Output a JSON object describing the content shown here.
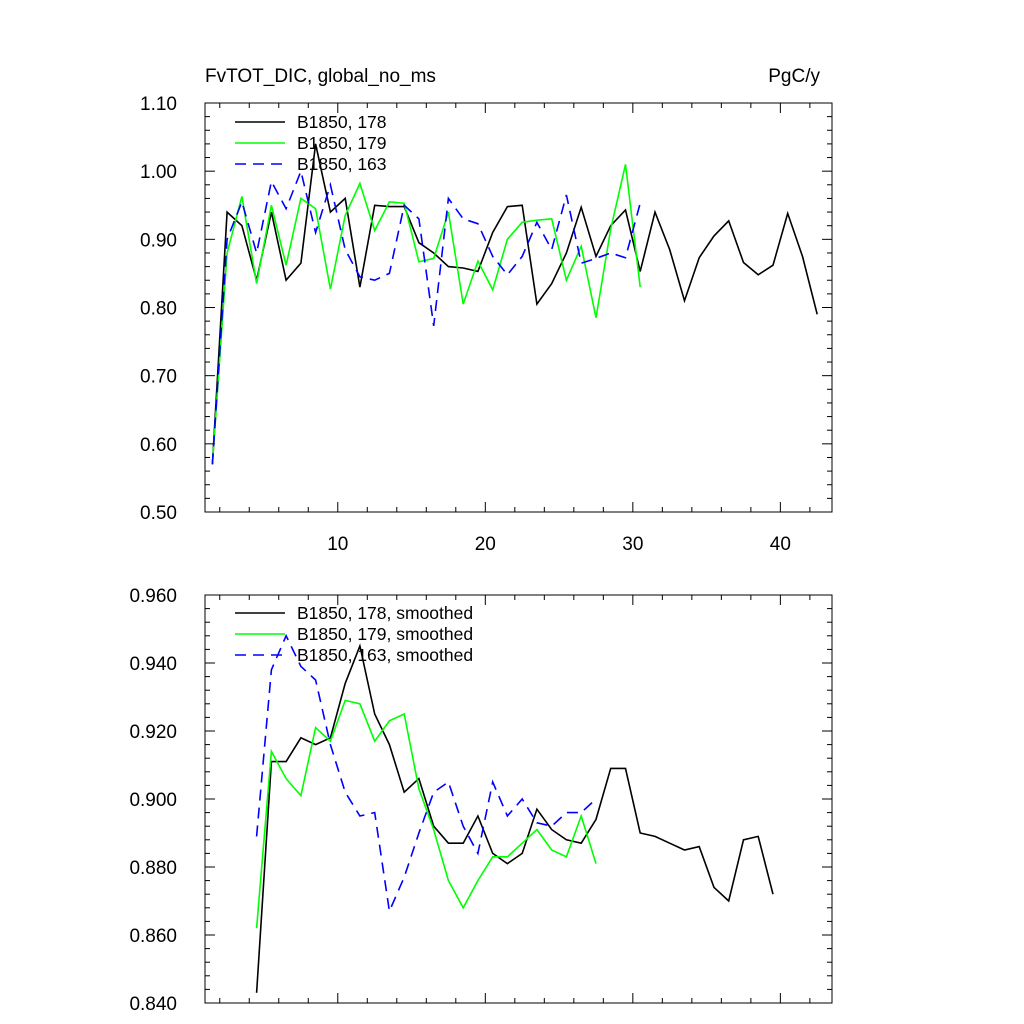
{
  "chart_data": [
    {
      "type": "line",
      "title": "FvTOT_DIC, global_no_ms",
      "units": "PgC/y",
      "xlim": [
        1,
        43.5
      ],
      "ylim": [
        0.5,
        1.1
      ],
      "x_ticks": [
        10,
        20,
        30,
        40
      ],
      "y_ticks": [
        "0.50",
        "0.60",
        "0.70",
        "0.80",
        "0.90",
        "1.00",
        "1.10"
      ],
      "series": [
        {
          "name": "B1850, 178",
          "color": "#000000",
          "dash": "solid",
          "x": [
            1.5,
            2.5,
            3.5,
            4.5,
            5.5,
            6.5,
            7.5,
            8.5,
            9.5,
            10.5,
            11.5,
            12.5,
            13.5,
            14.5,
            15.5,
            16.5,
            17.5,
            18.5,
            19.5,
            20.5,
            21.5,
            22.5,
            23.5,
            24.5,
            25.5,
            26.5,
            27.5,
            28.5,
            29.5,
            30.5,
            31.5,
            32.5,
            33.5,
            34.5,
            35.5,
            36.5,
            37.5,
            38.5,
            39.5,
            40.5,
            41.5,
            42.5
          ],
          "y": [
            0.57,
            0.94,
            0.92,
            0.84,
            0.94,
            0.84,
            0.865,
            1.04,
            0.94,
            0.96,
            0.83,
            0.95,
            0.948,
            0.948,
            0.895,
            0.88,
            0.86,
            0.858,
            0.853,
            0.91,
            0.948,
            0.95,
            0.805,
            0.835,
            0.88,
            0.947,
            0.875,
            0.92,
            0.943,
            0.853,
            0.94,
            0.885,
            0.81,
            0.873,
            0.905,
            0.927,
            0.866,
            0.848,
            0.862,
            0.938,
            0.875,
            0.79
          ]
        },
        {
          "name": "B1850, 179",
          "color": "#00ff00",
          "dash": "solid",
          "x": [
            1.5,
            2.5,
            3.5,
            4.5,
            5.5,
            6.5,
            7.5,
            8.5,
            9.5,
            10.5,
            11.5,
            12.5,
            13.5,
            14.5,
            15.5,
            16.5,
            17.5,
            18.5,
            19.5,
            20.5,
            21.5,
            22.5,
            23.5,
            24.5,
            25.5,
            26.5,
            27.5,
            28.5,
            29.5,
            30.5
          ],
          "y": [
            0.57,
            0.88,
            0.963,
            0.835,
            0.95,
            0.862,
            0.96,
            0.945,
            0.827,
            0.935,
            0.982,
            0.913,
            0.955,
            0.953,
            0.867,
            0.872,
            0.94,
            0.805,
            0.868,
            0.826,
            0.9,
            0.925,
            0.928,
            0.93,
            0.84,
            0.89,
            0.785,
            0.915,
            1.01,
            0.83
          ]
        },
        {
          "name": "B1850, 163",
          "color": "#0000ff",
          "dash": "dashed",
          "x": [
            1.5,
            2.5,
            3.5,
            4.5,
            5.5,
            6.5,
            7.5,
            8.5,
            9.5,
            10.5,
            11.5,
            12.5,
            13.5,
            14.5,
            15.5,
            16.5,
            17.5,
            18.5,
            19.5,
            20.5,
            21.5,
            22.5,
            23.5,
            24.5,
            25.5,
            26.5,
            27.5,
            28.5,
            29.5,
            30.5
          ],
          "y": [
            0.57,
            0.9,
            0.955,
            0.88,
            0.985,
            0.945,
            1.0,
            0.91,
            0.98,
            0.885,
            0.845,
            0.84,
            0.85,
            0.95,
            0.93,
            0.773,
            0.96,
            0.93,
            0.923,
            0.875,
            0.848,
            0.875,
            0.925,
            0.885,
            0.965,
            0.865,
            0.872,
            0.88,
            0.873,
            0.953
          ]
        }
      ]
    },
    {
      "type": "line",
      "xlim": [
        1,
        43.5
      ],
      "ylim": [
        0.84,
        0.96
      ],
      "y_ticks": [
        "0.840",
        "0.860",
        "0.880",
        "0.900",
        "0.920",
        "0.940",
        "0.960"
      ],
      "series": [
        {
          "name": "B1850, 178, smoothed",
          "color": "#000000",
          "dash": "solid",
          "x": [
            4.5,
            5.5,
            6.5,
            7.5,
            8.5,
            9.5,
            10.5,
            11.5,
            12.5,
            13.5,
            14.5,
            15.5,
            16.5,
            17.5,
            18.5,
            19.5,
            20.5,
            21.5,
            22.5,
            23.5,
            24.5,
            25.5,
            26.5,
            27.5,
            28.5,
            29.5,
            30.5,
            31.5,
            32.5,
            33.5,
            34.5,
            35.5,
            36.5,
            37.5,
            38.5,
            39.5
          ],
          "y": [
            0.843,
            0.911,
            0.911,
            0.918,
            0.916,
            0.918,
            0.934,
            0.945,
            0.925,
            0.916,
            0.902,
            0.906,
            0.892,
            0.887,
            0.887,
            0.895,
            0.884,
            0.881,
            0.884,
            0.897,
            0.891,
            0.888,
            0.887,
            0.894,
            0.909,
            0.909,
            0.89,
            0.889,
            0.887,
            0.885,
            0.886,
            0.874,
            0.87,
            0.888,
            0.889,
            0.872
          ]
        },
        {
          "name": "B1850, 179, smoothed",
          "color": "#00ff00",
          "dash": "solid",
          "x": [
            4.5,
            5.5,
            6.5,
            7.5,
            8.5,
            9.5,
            10.5,
            11.5,
            12.5,
            13.5,
            14.5,
            15.5,
            16.5,
            17.5,
            18.5,
            19.5,
            20.5,
            21.5,
            22.5,
            23.5,
            24.5,
            25.5,
            26.5,
            27.5
          ],
          "y": [
            0.862,
            0.914,
            0.906,
            0.901,
            0.921,
            0.917,
            0.929,
            0.928,
            0.917,
            0.923,
            0.925,
            0.903,
            0.891,
            0.876,
            0.868,
            0.876,
            0.883,
            0.883,
            0.887,
            0.891,
            0.885,
            0.883,
            0.895,
            0.881
          ]
        },
        {
          "name": "B1850, 163, smoothed",
          "color": "#0000ff",
          "dash": "dashed",
          "x": [
            4.5,
            5.5,
            6.5,
            7.5,
            8.5,
            9.5,
            10.5,
            11.5,
            12.5,
            13.5,
            14.5,
            15.5,
            16.5,
            17.5,
            18.5,
            19.5,
            20.5,
            21.5,
            22.5,
            23.5,
            24.5,
            25.5,
            26.5,
            27.5
          ],
          "y": [
            0.889,
            0.938,
            0.948,
            0.939,
            0.935,
            0.916,
            0.902,
            0.895,
            0.896,
            0.867,
            0.877,
            0.89,
            0.902,
            0.905,
            0.892,
            0.884,
            0.905,
            0.895,
            0.9,
            0.893,
            0.892,
            0.896,
            0.896,
            0.9
          ]
        }
      ]
    }
  ]
}
